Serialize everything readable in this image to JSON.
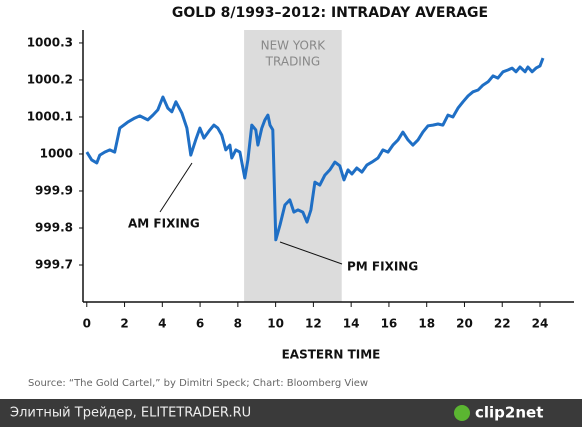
{
  "chart_data": {
    "type": "line",
    "title": "GOLD 8/1993–2012: INTRADAY AVERAGE",
    "x_label": "EASTERN TIME",
    "shaded_region": {
      "label_lines": [
        "NEW YORK",
        "TRADING"
      ],
      "x": [
        8.33,
        13.5
      ],
      "color": "#dcdcdc"
    },
    "annotations": [
      "AM FIXING",
      "PM FIXING"
    ],
    "xlim": [
      -0.2,
      25.8
    ],
    "xticks": [
      0,
      2,
      4,
      6,
      8,
      10,
      12,
      14,
      16,
      18,
      20,
      22,
      24
    ],
    "ylim": [
      999.6,
      1000.335
    ],
    "yticks": [
      999.7,
      999.8,
      999.9,
      1000,
      1000.1,
      1000.2,
      1000.3
    ],
    "grid": false,
    "series": [
      {
        "color": "#1f6fc5",
        "x": [
          0,
          0.26,
          0.53,
          0.69,
          0.95,
          1.22,
          1.48,
          1.75,
          2.17,
          2.54,
          2.81,
          3.23,
          3.5,
          3.76,
          4.03,
          4.29,
          4.5,
          4.72,
          5.03,
          5.3,
          5.51,
          5.77,
          5.99,
          6.2,
          6.52,
          6.73,
          6.94,
          7.15,
          7.36,
          7.58,
          7.68,
          7.89,
          8.11,
          8.37,
          8.53,
          8.74,
          8.95,
          9.06,
          9.27,
          9.43,
          9.59,
          9.7,
          9.85,
          10.01,
          10.23,
          10.49,
          10.75,
          10.97,
          11.18,
          11.44,
          11.66,
          11.87,
          12.08,
          12.34,
          12.61,
          12.87,
          13.14,
          13.4,
          13.62,
          13.83,
          14.04,
          14.3,
          14.57,
          14.83,
          15.1,
          15.42,
          15.68,
          15.95,
          16.21,
          16.48,
          16.74,
          17.01,
          17.27,
          17.54,
          17.8,
          18.07,
          18.33,
          18.6,
          18.86,
          19.13,
          19.39,
          19.66,
          19.92,
          20.19,
          20.45,
          20.72,
          20.98,
          21.25,
          21.51,
          21.77,
          22.04,
          22.3,
          22.52,
          22.73,
          22.94,
          23.21,
          23.36,
          23.58,
          23.79,
          24,
          24.16
        ],
        "values": [
          1000.005,
          999.984,
          999.976,
          999.997,
          1000.005,
          1000.011,
          1000.005,
          1000.07,
          1000.086,
          1000.097,
          1000.103,
          1000.092,
          1000.105,
          1000.119,
          1000.154,
          1000.124,
          1000.114,
          1000.141,
          1000.111,
          1000.07,
          999.997,
          1000.038,
          1000.07,
          1000.043,
          1000.065,
          1000.078,
          1000.07,
          1000.051,
          1000.011,
          1000.024,
          999.989,
          1000.011,
          1000.005,
          999.935,
          999.984,
          1000.078,
          1000.065,
          1000.024,
          1000.07,
          1000.092,
          1000.105,
          1000.078,
          1000.065,
          999.768,
          999.808,
          999.862,
          999.876,
          999.843,
          999.849,
          999.843,
          999.816,
          999.849,
          999.924,
          999.916,
          999.943,
          999.957,
          999.978,
          999.968,
          999.93,
          999.957,
          999.946,
          999.962,
          999.951,
          999.97,
          999.978,
          999.989,
          1000.011,
          1000.005,
          1000.024,
          1000.038,
          1000.059,
          1000.038,
          1000.024,
          1000.038,
          1000.059,
          1000.076,
          1000.078,
          1000.081,
          1000.078,
          1000.105,
          1000.1,
          1000.124,
          1000.141,
          1000.157,
          1000.168,
          1000.173,
          1000.186,
          1000.195,
          1000.211,
          1000.205,
          1000.222,
          1000.227,
          1000.232,
          1000.222,
          1000.235,
          1000.222,
          1000.235,
          1000.222,
          1000.232,
          1000.238,
          1000.259
        ]
      }
    ]
  },
  "footer": {
    "source": "Source: “The Gold Cartel,” by Dimitri Speck; Chart: Bloomberg View",
    "watermark": "Элитный Трейдер, ELITETRADER.RU",
    "logo": "clip2net"
  }
}
